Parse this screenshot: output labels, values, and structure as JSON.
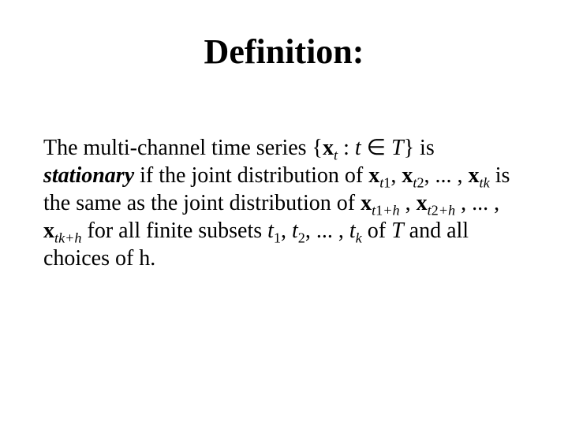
{
  "title": "Definition:",
  "body": {
    "p1a": "The multi-channel time series {",
    "p1b": "x",
    "p1c": "t",
    "p1d": " : ",
    "p1e": "t",
    "p1f": " ∈ ",
    "p1g": "T",
    "p1h": "} is ",
    "p2a": "stationary",
    "p2b": " if the joint distribution of ",
    "p2c": "x",
    "p2d": "t",
    "p2e": "1",
    "p2f": ", ",
    "p2g": "x",
    "p2h": "t",
    "p2i": "2",
    "p2j": ", ... , ",
    "p2k": "x",
    "p2l": "t",
    "p2m": "k",
    "p2n": " is the same as the joint distribution of ",
    "p3a": "x",
    "p3b": "t",
    "p3c": "1",
    "p3d": "+h",
    "p3e": " , ",
    "p3f": "x",
    "p3g": "t",
    "p3h": "2",
    "p3i": "+h",
    "p3j": " , ... , ",
    "p3k": "x",
    "p3l": "t",
    "p3m": "k",
    "p3n": "+h",
    "p3o": "  for all finite subsets ",
    "p3p": "t",
    "p3q": "1",
    "p3r": ", ",
    "p3s": "t",
    "p3t": "2",
    "p3u": ", ... , ",
    "p3v": "t",
    "p3w": "k",
    "p3x": "  of ",
    "p3y": "T",
    "p3z": " and all choices of h."
  },
  "colors": {
    "background": "#ffffff",
    "text": "#000000"
  },
  "typography": {
    "title_fontsize": 44,
    "body_fontsize": 28,
    "font_family": "Times New Roman"
  }
}
